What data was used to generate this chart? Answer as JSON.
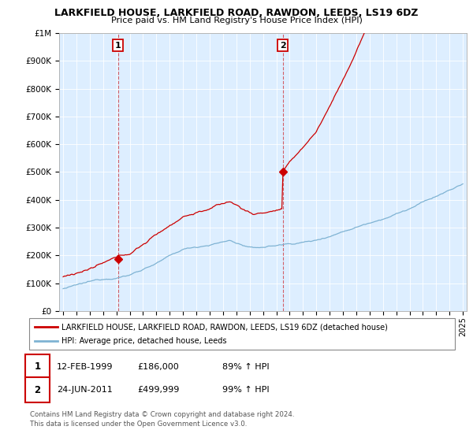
{
  "title": "LARKFIELD HOUSE, LARKFIELD ROAD, RAWDON, LEEDS, LS19 6DZ",
  "subtitle": "Price paid vs. HM Land Registry's House Price Index (HPI)",
  "legend_house": "LARKFIELD HOUSE, LARKFIELD ROAD, RAWDON, LEEDS, LS19 6DZ (detached house)",
  "legend_hpi": "HPI: Average price, detached house, Leeds",
  "annotation1_date": "12-FEB-1999",
  "annotation1_price": "£186,000",
  "annotation1_hpi": "89% ↑ HPI",
  "annotation2_date": "24-JUN-2011",
  "annotation2_price": "£499,999",
  "annotation2_hpi": "99% ↑ HPI",
  "footnote": "Contains HM Land Registry data © Crown copyright and database right 2024.\nThis data is licensed under the Open Government Licence v3.0.",
  "red_color": "#cc0000",
  "blue_color": "#7fb3d3",
  "point1_x": 1999.12,
  "point1_y": 186000,
  "point2_x": 2011.48,
  "point2_y": 499999,
  "ylim": [
    0,
    1000000
  ],
  "xlim": [
    1994.7,
    2025.3
  ],
  "plot_bg": "#ddeeff"
}
